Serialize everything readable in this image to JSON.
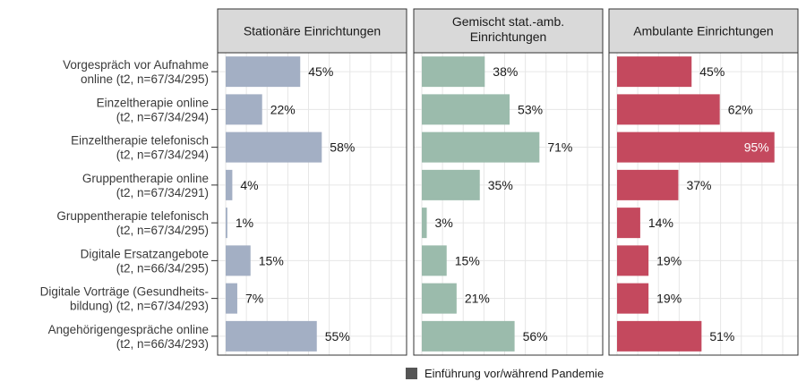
{
  "chart_data": {
    "type": "bar",
    "orientation": "horizontal",
    "xlim": [
      0,
      100
    ],
    "grid": true,
    "legend_position": "bottom",
    "legend": {
      "label": "Einführung vor/während Pandemie",
      "color": "#555555"
    },
    "categories": [
      [
        "Vorgespräch vor Aufnahme",
        "online    (t2, n=67/34/295)"
      ],
      [
        "Einzeltherapie online",
        "(t2, n=67/34/294)"
      ],
      [
        "Einzeltherapie telefonisch",
        "(t2, n=67/34/294)"
      ],
      [
        "Gruppentherapie online",
        "(t2, n=67/34/291)"
      ],
      [
        "Gruppentherapie telefonisch",
        "(t2, n=67/34/295)"
      ],
      [
        "Digitale Ersatzangebote",
        "(t2, n=66/34/295)"
      ],
      [
        "Digitale Vorträge (Gesundheits-",
        "bildung)    (t2, n=67/34/293)"
      ],
      [
        "Angehörigengespräche online",
        "(t2, n=66/34/293)"
      ]
    ],
    "panels": [
      {
        "title": [
          "Stationäre Einrichtungen"
        ],
        "color": "#a3afc4",
        "values": [
          45,
          22,
          58,
          4,
          1,
          15,
          7,
          55
        ],
        "labels": [
          "45%",
          "22%",
          "58%",
          "4%",
          "1%",
          "15%",
          "7%",
          "55%"
        ]
      },
      {
        "title": [
          "Gemischt stat.-amb.",
          "Einrichtungen"
        ],
        "color": "#9bbbac",
        "values": [
          38,
          53,
          71,
          35,
          3,
          15,
          21,
          56
        ],
        "labels": [
          "38%",
          "53%",
          "71%",
          "35%",
          "3%",
          "15%",
          "21%",
          "56%"
        ]
      },
      {
        "title": [
          "Ambulante Einrichtungen"
        ],
        "color": "#c4495e",
        "values": [
          45,
          62,
          95,
          37,
          14,
          19,
          19,
          51
        ],
        "labels": [
          "45%",
          "62%",
          "95%",
          "37%",
          "14%",
          "19%",
          "19%",
          "51%"
        ]
      }
    ]
  }
}
